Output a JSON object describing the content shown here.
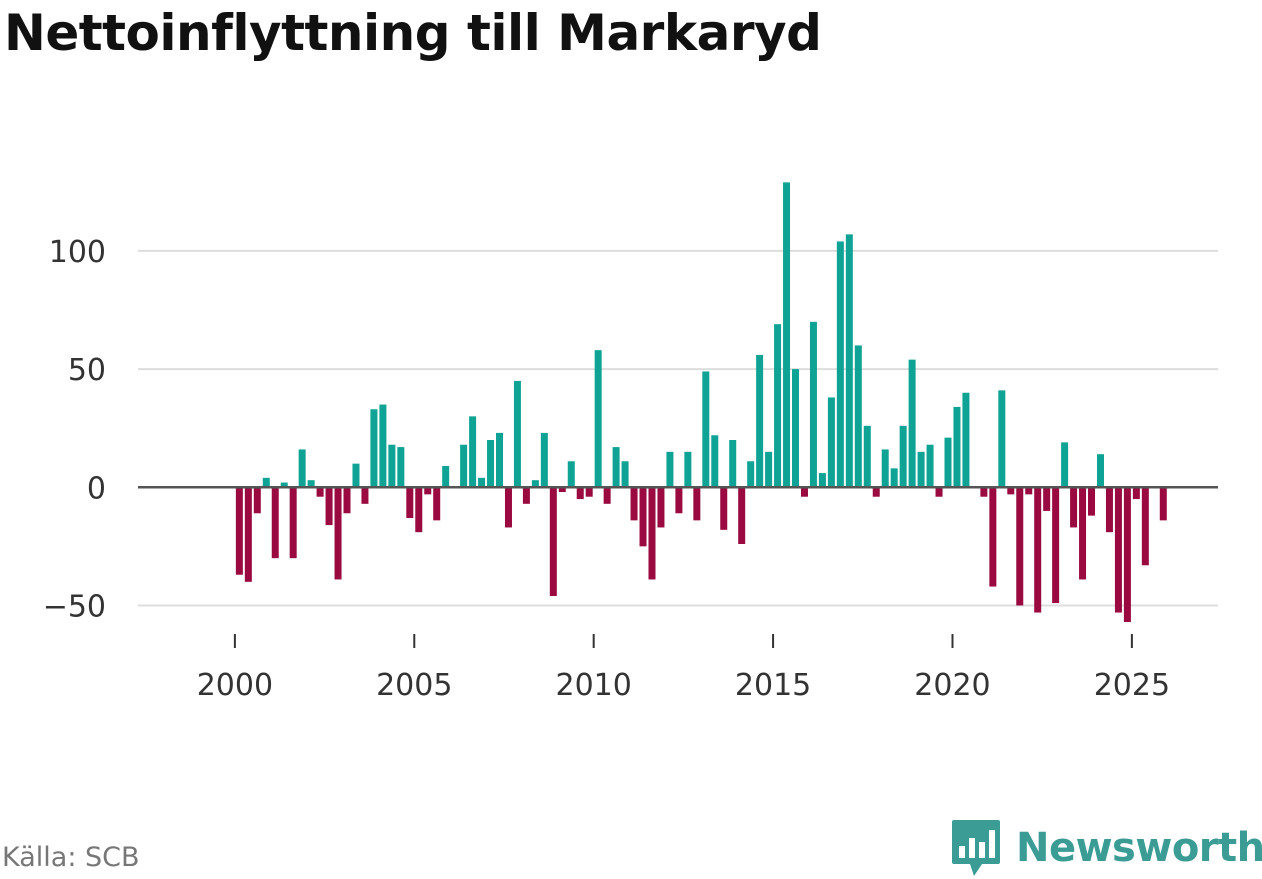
{
  "title": "Nettoinflyttning till Markaryd",
  "source": "Källa: SCB",
  "brand": {
    "name": "Newsworthy",
    "icon": "newsworthy-logo-icon"
  },
  "colors": {
    "positive": "#0ea394",
    "negative": "#9a0a40",
    "grid": "#dddddd",
    "zero_line": "#555555",
    "brand": "#3a9c94"
  },
  "chart_data": {
    "type": "bar",
    "title": "Nettoinflyttning till Markaryd",
    "xlabel": "",
    "ylabel": "",
    "ylim": [
      -57,
      130
    ],
    "xlim": [
      1997.3,
      2027.4
    ],
    "grid": true,
    "y_ticks": [
      -50,
      0,
      50,
      100
    ],
    "y_tick_labels": [
      "−50",
      "0",
      "50",
      "100"
    ],
    "x_ticks": [
      2000,
      2005,
      2010,
      2015,
      2020,
      2025
    ],
    "x_tick_labels": [
      "2000",
      "2005",
      "2010",
      "2015",
      "2020",
      "2025"
    ],
    "start": 2000.125,
    "step": 0.25,
    "values": [
      -37,
      -40,
      -11,
      4,
      -30,
      2,
      -30,
      16,
      3,
      -4,
      -16,
      -39,
      -11,
      10,
      -7,
      33,
      35,
      18,
      17,
      -13,
      -19,
      -3,
      -14,
      9,
      0,
      18,
      30,
      4,
      20,
      23,
      -17,
      45,
      -7,
      3,
      23,
      -46,
      -2,
      11,
      -5,
      -4,
      58,
      -7,
      17,
      11,
      -14,
      -25,
      -39,
      -17,
      15,
      -11,
      15,
      -14,
      49,
      22,
      -18,
      20,
      -24,
      11,
      56,
      15,
      69,
      129,
      50,
      -4,
      70,
      6,
      38,
      104,
      107,
      60,
      26,
      -4,
      16,
      8,
      26,
      54,
      15,
      18,
      -4,
      21,
      34,
      40,
      0,
      -4,
      -42,
      41,
      -3,
      -50,
      -3,
      -53,
      -10,
      -49,
      19,
      -17,
      -39,
      -12,
      14,
      -19,
      -53,
      -57,
      -5,
      -33,
      0,
      -14
    ]
  }
}
